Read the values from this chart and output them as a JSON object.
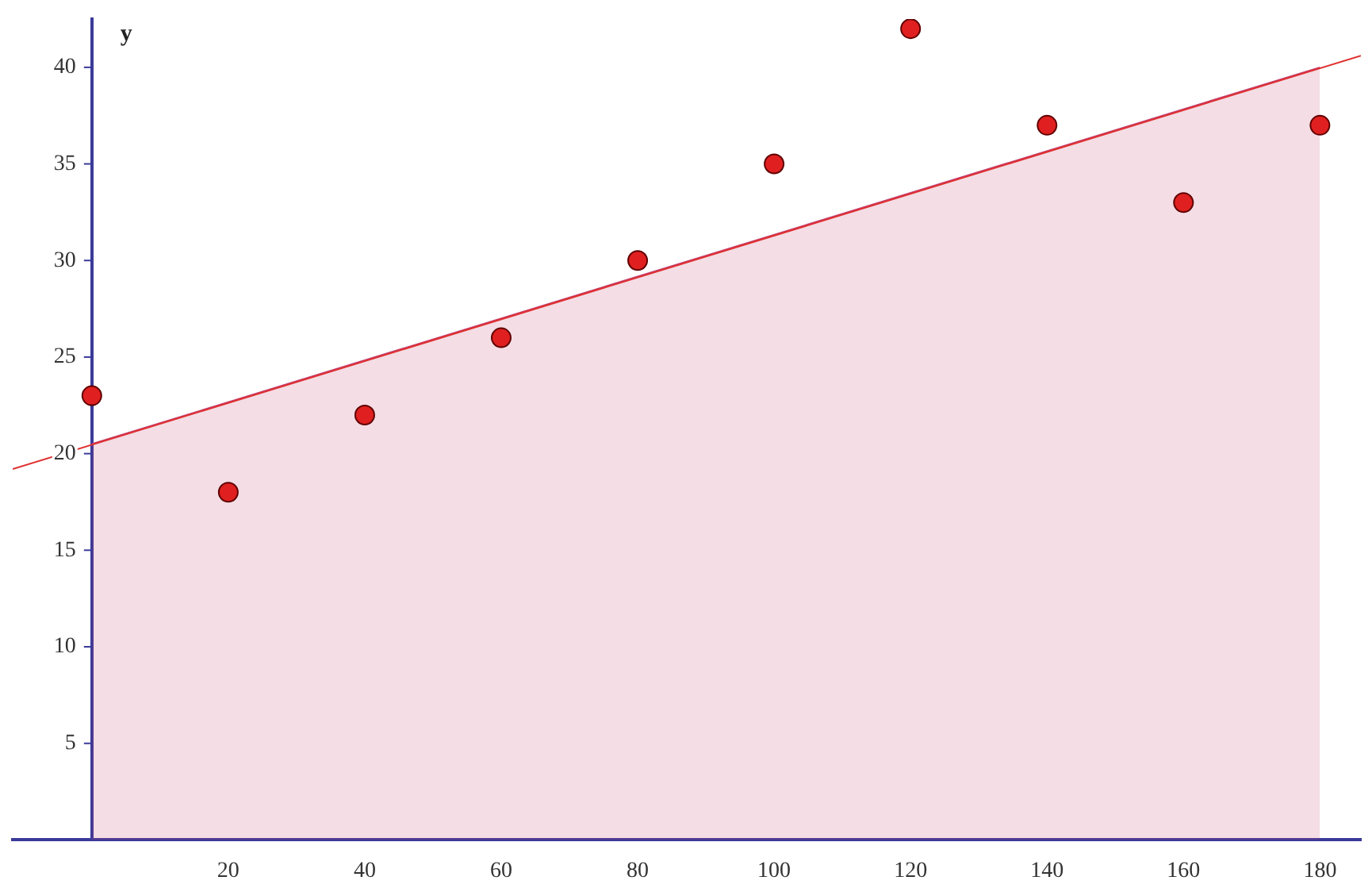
{
  "chart_data": {
    "type": "scatter",
    "ylabel": "y",
    "xlim": [
      -11.6,
      186
    ],
    "ylim": [
      0,
      42.5
    ],
    "xticks": [
      20,
      40,
      60,
      80,
      100,
      120,
      140,
      160,
      180
    ],
    "yticks": [
      5,
      10,
      15,
      20,
      25,
      30,
      35,
      40
    ],
    "grid": false,
    "legend": false,
    "series": [
      {
        "type": "area",
        "color": "#c04070",
        "marker": "none",
        "x": [
          0,
          180
        ],
        "values": [
          20.5,
          40
        ]
      },
      {
        "type": "line",
        "color": "#e03030",
        "marker": "none",
        "x": [
          -11.6,
          186
        ],
        "values": [
          19.2,
          40.6
        ]
      },
      {
        "type": "scatter",
        "color": "#e02020",
        "marker": "circle",
        "x": [
          0,
          20,
          40,
          60,
          80,
          100,
          120,
          140,
          160,
          180
        ],
        "values": [
          23,
          18,
          22,
          26,
          30,
          35,
          42,
          37,
          33,
          37
        ]
      }
    ]
  }
}
